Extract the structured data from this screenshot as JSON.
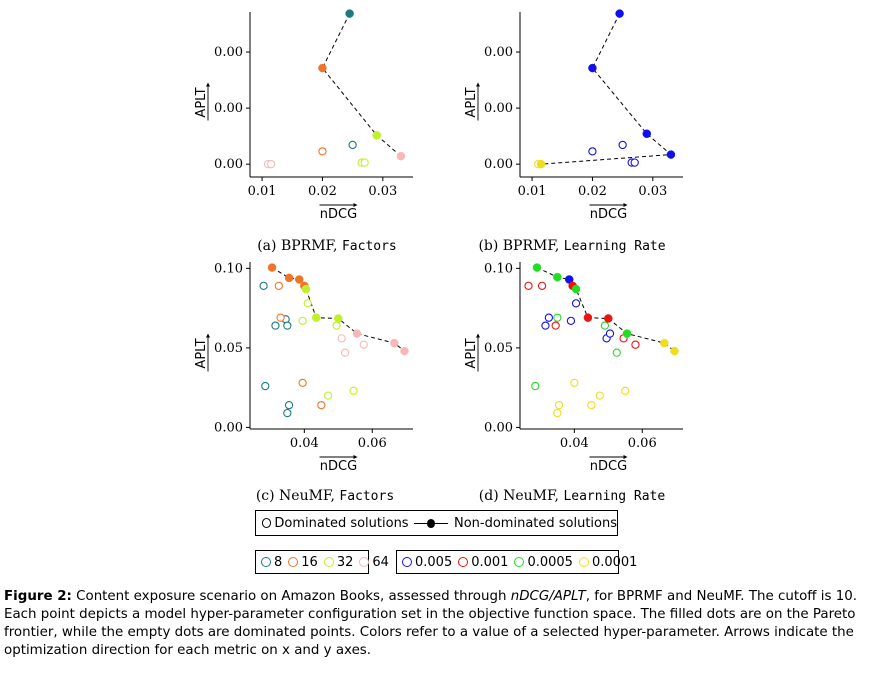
{
  "panels": [
    {
      "id": "a",
      "caption_prefix": "(a) BPRMF, ",
      "caption_param": "Factors",
      "xlabel": "nDCG",
      "ylabel": "APLT",
      "xticks": [
        "0.01",
        "0.02",
        "0.03"
      ],
      "yticks": [
        "0.00",
        "0.00",
        "0.00"
      ],
      "xtick_values": [
        0.01,
        0.02,
        0.03
      ],
      "ytick_values": [
        0.0,
        0.00035,
        0.0007
      ],
      "xlim": [
        0.008,
        0.035
      ],
      "ylim": [
        -8e-05,
        0.00095
      ],
      "pareto": [
        {
          "x": 0.0245,
          "y": 0.00094,
          "color": "#1a7a80"
        },
        {
          "x": 0.02,
          "y": 0.0006,
          "color": "#f07427"
        },
        {
          "x": 0.029,
          "y": 0.00018,
          "color": "#bff02a"
        },
        {
          "x": 0.033,
          "y": 5e-05,
          "color": "#f8b8b8"
        }
      ],
      "dominated": [
        {
          "x": 0.025,
          "y": 0.00012,
          "color": "#1a7a80"
        },
        {
          "x": 0.02,
          "y": 8e-05,
          "color": "#f07427"
        },
        {
          "x": 0.0265,
          "y": 1e-05,
          "color": "#bff02a"
        },
        {
          "x": 0.027,
          "y": 1e-05,
          "color": "#bff02a"
        },
        {
          "x": 0.011,
          "y": 0.0,
          "color": "#f8b8b8"
        },
        {
          "x": 0.0115,
          "y": 0.0,
          "color": "#f8b8b8"
        }
      ]
    },
    {
      "id": "b",
      "caption_prefix": "(b) BPRMF, ",
      "caption_param": "Learning Rate",
      "xlabel": "nDCG",
      "ylabel": "APLT",
      "xticks": [
        "0.01",
        "0.02",
        "0.03"
      ],
      "yticks": [
        "0.00",
        "0.00",
        "0.00"
      ],
      "xtick_values": [
        0.01,
        0.02,
        0.03
      ],
      "ytick_values": [
        0.0,
        0.00035,
        0.0007
      ],
      "xlim": [
        0.008,
        0.035
      ],
      "ylim": [
        -8e-05,
        0.00095
      ],
      "pareto": [
        {
          "x": 0.0245,
          "y": 0.00094,
          "color": "#1010ee"
        },
        {
          "x": 0.02,
          "y": 0.0006,
          "color": "#1010ee"
        },
        {
          "x": 0.029,
          "y": 0.00019,
          "color": "#1010ee"
        },
        {
          "x": 0.033,
          "y": 6e-05,
          "color": "#1010ee"
        },
        {
          "x": 0.0115,
          "y": 0.0,
          "color": "#f0dd20"
        }
      ],
      "dominated": [
        {
          "x": 0.025,
          "y": 0.00012,
          "color": "#1010ee"
        },
        {
          "x": 0.02,
          "y": 8e-05,
          "color": "#1010ee"
        },
        {
          "x": 0.0265,
          "y": 1e-05,
          "color": "#1010ee"
        },
        {
          "x": 0.027,
          "y": 1e-05,
          "color": "#1010ee"
        },
        {
          "x": 0.011,
          "y": 0.0,
          "color": "#f0dd20"
        }
      ]
    },
    {
      "id": "c",
      "caption_prefix": "(c) NeuMF, ",
      "caption_param": "Factors",
      "xlabel": "nDCG",
      "ylabel": "APLT",
      "xticks": [
        "0.04",
        "0.06"
      ],
      "yticks": [
        "0.00",
        "0.05",
        "0.10"
      ],
      "xtick_values": [
        0.04,
        0.06
      ],
      "ytick_values": [
        0.0,
        0.05,
        0.1
      ],
      "xlim": [
        0.024,
        0.072
      ],
      "ylim": [
        -0.001,
        0.104
      ],
      "pareto": [
        {
          "x": 0.0305,
          "y": 0.1005,
          "color": "#f07427"
        },
        {
          "x": 0.0355,
          "y": 0.094,
          "color": "#f07427"
        },
        {
          "x": 0.0385,
          "y": 0.093,
          "color": "#f07427"
        },
        {
          "x": 0.04,
          "y": 0.089,
          "color": "#f07427"
        },
        {
          "x": 0.0405,
          "y": 0.087,
          "color": "#bff02a"
        },
        {
          "x": 0.0435,
          "y": 0.069,
          "color": "#bff02a"
        },
        {
          "x": 0.05,
          "y": 0.0685,
          "color": "#bff02a"
        },
        {
          "x": 0.0555,
          "y": 0.059,
          "color": "#f8b8b8"
        },
        {
          "x": 0.0665,
          "y": 0.053,
          "color": "#f8b8b8"
        },
        {
          "x": 0.0695,
          "y": 0.048,
          "color": "#f8b8b8"
        }
      ],
      "dominated": [
        {
          "x": 0.028,
          "y": 0.089,
          "color": "#1a7a80"
        },
        {
          "x": 0.0315,
          "y": 0.064,
          "color": "#1a7a80"
        },
        {
          "x": 0.0345,
          "y": 0.068,
          "color": "#1a7a80"
        },
        {
          "x": 0.035,
          "y": 0.064,
          "color": "#1a7a80"
        },
        {
          "x": 0.0285,
          "y": 0.026,
          "color": "#1a7a80"
        },
        {
          "x": 0.035,
          "y": 0.009,
          "color": "#1a7a80"
        },
        {
          "x": 0.0355,
          "y": 0.014,
          "color": "#1a7a80"
        },
        {
          "x": 0.0325,
          "y": 0.089,
          "color": "#f07427"
        },
        {
          "x": 0.033,
          "y": 0.069,
          "color": "#f07427"
        },
        {
          "x": 0.0395,
          "y": 0.028,
          "color": "#f07427"
        },
        {
          "x": 0.045,
          "y": 0.014,
          "color": "#f07427"
        },
        {
          "x": 0.041,
          "y": 0.078,
          "color": "#bff02a"
        },
        {
          "x": 0.0395,
          "y": 0.067,
          "color": "#bff02a"
        },
        {
          "x": 0.0495,
          "y": 0.064,
          "color": "#bff02a"
        },
        {
          "x": 0.047,
          "y": 0.02,
          "color": "#bff02a"
        },
        {
          "x": 0.0545,
          "y": 0.023,
          "color": "#bff02a"
        },
        {
          "x": 0.051,
          "y": 0.056,
          "color": "#f8b8b8"
        },
        {
          "x": 0.052,
          "y": 0.047,
          "color": "#f8b8b8"
        },
        {
          "x": 0.0575,
          "y": 0.052,
          "color": "#f8b8b8"
        }
      ]
    },
    {
      "id": "d",
      "caption_prefix": "(d) NeuMF, ",
      "caption_param": "Learning Rate",
      "xlabel": "nDCG",
      "ylabel": "APLT",
      "xticks": [
        "0.04",
        "0.06"
      ],
      "yticks": [
        "0.00",
        "0.05",
        "0.10"
      ],
      "xtick_values": [
        0.04,
        0.06
      ],
      "ytick_values": [
        0.0,
        0.05,
        0.1
      ],
      "xlim": [
        0.024,
        0.072
      ],
      "ylim": [
        -0.001,
        0.104
      ],
      "pareto": [
        {
          "x": 0.029,
          "y": 0.1005,
          "color": "#22dd22"
        },
        {
          "x": 0.035,
          "y": 0.0945,
          "color": "#22dd22"
        },
        {
          "x": 0.0385,
          "y": 0.093,
          "color": "#1010ee"
        },
        {
          "x": 0.0395,
          "y": 0.089,
          "color": "#ee1111"
        },
        {
          "x": 0.0405,
          "y": 0.087,
          "color": "#22dd22"
        },
        {
          "x": 0.044,
          "y": 0.069,
          "color": "#ee1111"
        },
        {
          "x": 0.05,
          "y": 0.0685,
          "color": "#ee1111"
        },
        {
          "x": 0.0555,
          "y": 0.059,
          "color": "#22dd22"
        },
        {
          "x": 0.0665,
          "y": 0.053,
          "color": "#f0dd20"
        },
        {
          "x": 0.0695,
          "y": 0.048,
          "color": "#f0dd20"
        }
      ],
      "dominated": [
        {
          "x": 0.0265,
          "y": 0.089,
          "color": "#ee1111"
        },
        {
          "x": 0.0305,
          "y": 0.089,
          "color": "#ee1111"
        },
        {
          "x": 0.0315,
          "y": 0.064,
          "color": "#1010ee"
        },
        {
          "x": 0.0325,
          "y": 0.069,
          "color": "#1010ee"
        },
        {
          "x": 0.0345,
          "y": 0.064,
          "color": "#ee1111"
        },
        {
          "x": 0.035,
          "y": 0.069,
          "color": "#22dd22"
        },
        {
          "x": 0.039,
          "y": 0.067,
          "color": "#1010ee"
        },
        {
          "x": 0.0405,
          "y": 0.078,
          "color": "#1010ee"
        },
        {
          "x": 0.0495,
          "y": 0.056,
          "color": "#1010ee"
        },
        {
          "x": 0.0505,
          "y": 0.059,
          "color": "#1010ee"
        },
        {
          "x": 0.049,
          "y": 0.064,
          "color": "#22dd22"
        },
        {
          "x": 0.0525,
          "y": 0.047,
          "color": "#22dd22"
        },
        {
          "x": 0.0545,
          "y": 0.056,
          "color": "#ee1111"
        },
        {
          "x": 0.058,
          "y": 0.052,
          "color": "#ee1111"
        },
        {
          "x": 0.0285,
          "y": 0.026,
          "color": "#22dd22"
        },
        {
          "x": 0.035,
          "y": 0.009,
          "color": "#f0dd20"
        },
        {
          "x": 0.0355,
          "y": 0.014,
          "color": "#f0dd20"
        },
        {
          "x": 0.04,
          "y": 0.028,
          "color": "#f0dd20"
        },
        {
          "x": 0.045,
          "y": 0.014,
          "color": "#f0dd20"
        },
        {
          "x": 0.0475,
          "y": 0.02,
          "color": "#f0dd20"
        },
        {
          "x": 0.055,
          "y": 0.023,
          "color": "#f0dd20"
        }
      ]
    }
  ],
  "legend_solutions": {
    "dominated": "Dominated solutions",
    "nondominated": "Non-dominated solutions"
  },
  "legend_factors": [
    {
      "label": "8",
      "color": "#1a7a80"
    },
    {
      "label": "16",
      "color": "#f07427"
    },
    {
      "label": "32",
      "color": "#bff02a"
    },
    {
      "label": "64",
      "color": "#f8b8b8"
    }
  ],
  "legend_lr": [
    {
      "label": "0.005",
      "color": "#1010ee"
    },
    {
      "label": "0.001",
      "color": "#ee1111"
    },
    {
      "label": "0.0005",
      "color": "#22dd22"
    },
    {
      "label": "0.0001",
      "color": "#f0dd20"
    }
  ],
  "caption": {
    "label": "Figure 2:",
    "text1": " Content exposure scenario on Amazon Books, assessed through ",
    "metric": "nDCG/APLT",
    "text2": ", for BPRMF and NeuMF. The cutoff is 10. Each point depicts a model hyper-parameter configuration set in the objective function space. The filled dots are on the Pareto frontier, while the empty dots are dominated points. Colors refer to a value of a selected hyper-parameter. Arrows indicate the optimization direction for each metric on x and y axes."
  },
  "chart_data": [
    {
      "type": "scatter",
      "panel": "a"
    },
    {
      "type": "scatter",
      "panel": "b"
    },
    {
      "type": "scatter",
      "panel": "c"
    },
    {
      "type": "scatter",
      "panel": "d"
    }
  ]
}
